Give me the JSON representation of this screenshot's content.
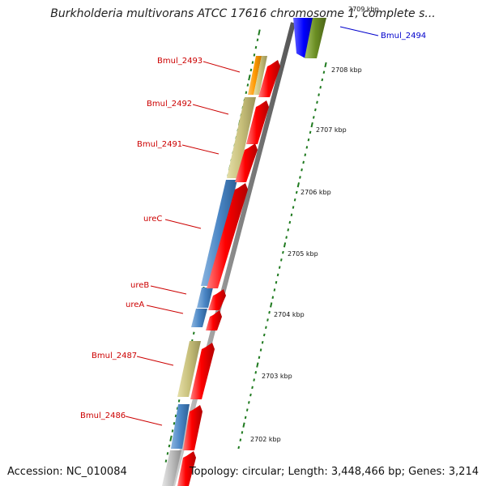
{
  "title": "Burkholderia multivorans ATCC 17616 chromosome 1, complete s...",
  "footer": {
    "accession": "Accession: NC_010084",
    "summary": "Topology: circular; Length: 3,448,466 bp; Genes: 3,214"
  },
  "colors": {
    "label_red": "#cc0000",
    "label_blue": "#0000cc",
    "arrow_red": "#ff0000",
    "khaki": "#c7bf7a",
    "steelblue": "#4a86c5",
    "orange": "#ff9900",
    "blue": "#0000ff",
    "olive": "#6b8e23",
    "tick_green": "#1f7a1f",
    "backbone": "#8a8a8a"
  },
  "kbp_labels": [
    "2709 kbp",
    "2708 kbp",
    "2707 kbp",
    "2706 kbp",
    "2705 kbp",
    "2704 kbp",
    "2703 kbp",
    "2702 kbp"
  ],
  "gene_labels": [
    {
      "text": "Bmul_2494",
      "color": "blue"
    },
    {
      "text": "Bmul_2493",
      "color": "red"
    },
    {
      "text": "Bmul_2492",
      "color": "red"
    },
    {
      "text": "Bmul_2491",
      "color": "red"
    },
    {
      "text": "ureC",
      "color": "red"
    },
    {
      "text": "ureB",
      "color": "red"
    },
    {
      "text": "ureA",
      "color": "red"
    },
    {
      "text": "Bmul_2487",
      "color": "red"
    },
    {
      "text": "Bmul_2486",
      "color": "red"
    }
  ]
}
